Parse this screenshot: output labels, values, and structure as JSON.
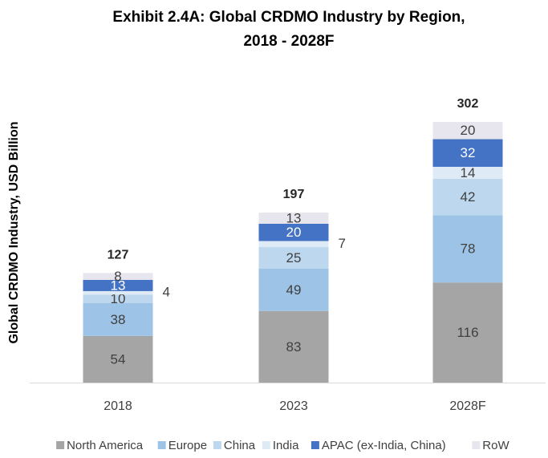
{
  "chart_data": {
    "type": "stacked_bar",
    "title": [
      "Exhibit 2.4A: Global CRDMO Industry by Region,",
      "2018 - 2028F"
    ],
    "y_axis_label": "Global CRDMO Industry, USD Billion",
    "categories": [
      "2018",
      "2023",
      "2028F"
    ],
    "series": [
      {
        "name": "North America",
        "color": "#a5a5a5",
        "values": [
          54,
          83,
          116
        ]
      },
      {
        "name": "Europe",
        "color": "#9dc3e6",
        "values": [
          38,
          49,
          78
        ]
      },
      {
        "name": "China",
        "color": "#bdd7ee",
        "values": [
          10,
          25,
          42
        ]
      },
      {
        "name": "India",
        "color": "#deebf7",
        "values": [
          4,
          7,
          14
        ]
      },
      {
        "name": "APAC (ex-India, China)",
        "color": "#4472c4",
        "values": [
          13,
          20,
          32
        ]
      },
      {
        "name": "RoW",
        "color": "#e7e6ef",
        "values": [
          8,
          13,
          20
        ]
      }
    ],
    "totals": [
      127,
      197,
      302
    ],
    "legend": "bottom"
  }
}
